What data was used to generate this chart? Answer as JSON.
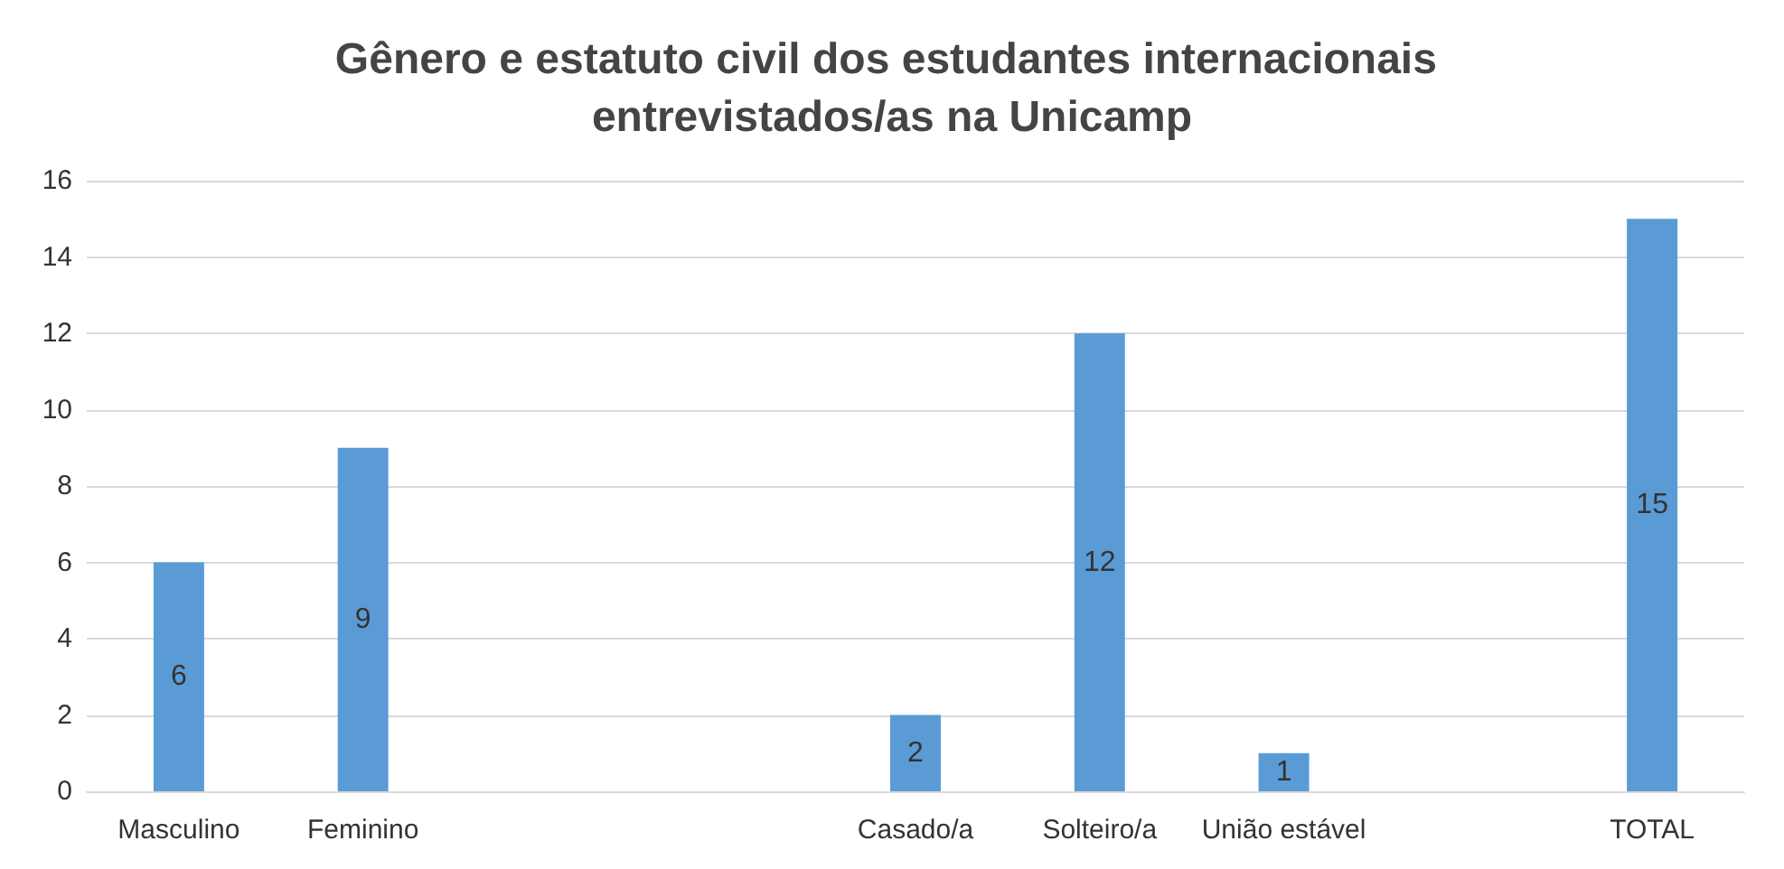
{
  "chart_data": {
    "type": "bar",
    "title": "Gênero e estatuto civil dos estudantes internacionais entrevistados/as na Unicamp",
    "categories": [
      "Masculino",
      "Feminino",
      null,
      null,
      "Casado/a",
      "Solteiro/a",
      "União estável",
      null,
      "TOTAL"
    ],
    "values": [
      6,
      9,
      null,
      null,
      2,
      12,
      1,
      null,
      15
    ],
    "color": "#5b9bd5",
    "ylim": [
      0,
      16
    ],
    "yticks": [
      0,
      2,
      4,
      6,
      8,
      10,
      12,
      14,
      16
    ],
    "grid": "y",
    "data_labels": true
  }
}
